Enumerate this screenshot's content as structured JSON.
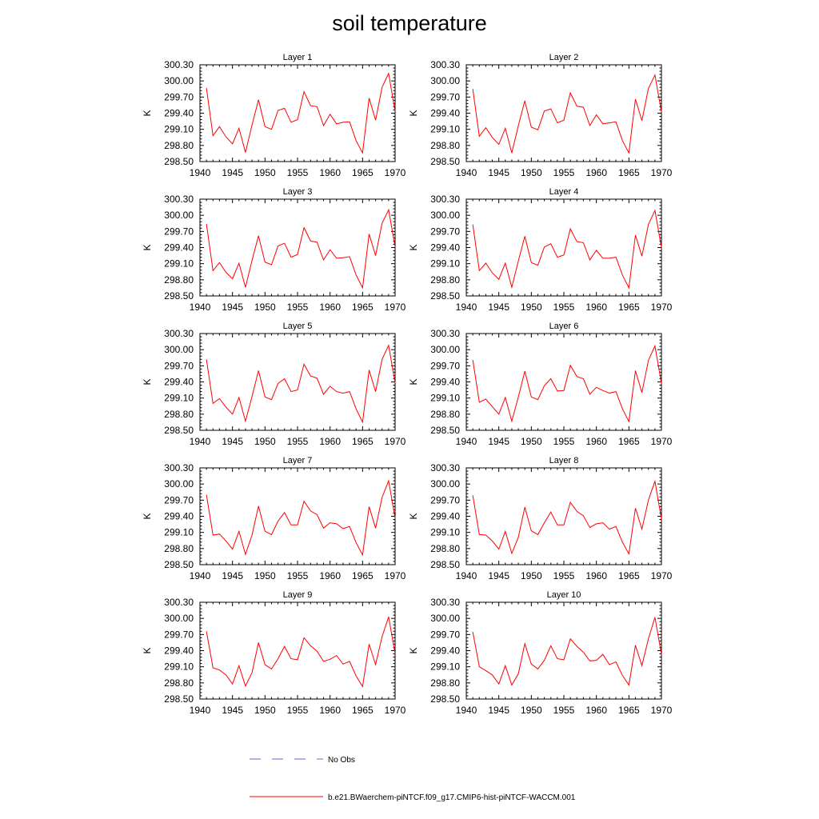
{
  "page": {
    "title": "soil temperature"
  },
  "legend": {
    "no_obs_label": "No Obs",
    "model_label": "b.e21.BWaerchem-piNTCF.f09_g17.CMIP6-hist-piNTCF-WACCM.001",
    "no_obs_color": "#6666cc",
    "model_color": "#ff0000"
  },
  "chart_data": {
    "type": "line",
    "title": "soil temperature",
    "ylabel": "K",
    "xlim": [
      1940,
      1970
    ],
    "ylim": [
      298.5,
      300.3
    ],
    "xticks": [
      "1940",
      "1945",
      "1950",
      "1955",
      "1960",
      "1965",
      "1970"
    ],
    "yticks": [
      "300.30",
      "300.00",
      "299.70",
      "299.40",
      "299.10",
      "298.80",
      "298.50"
    ],
    "line_color": "#ff0000",
    "x": [
      1941,
      1942,
      1943,
      1944,
      1945,
      1946,
      1947,
      1948,
      1949,
      1950,
      1951,
      1952,
      1953,
      1954,
      1955,
      1956,
      1957,
      1958,
      1959,
      1960,
      1961,
      1962,
      1963,
      1964,
      1965,
      1966,
      1967,
      1968,
      1969,
      1970
    ],
    "panels": [
      {
        "title": "Layer 1",
        "values": [
          299.87,
          298.98,
          299.15,
          298.96,
          298.83,
          299.12,
          298.67,
          299.18,
          299.65,
          299.15,
          299.1,
          299.45,
          299.49,
          299.23,
          299.28,
          299.8,
          299.54,
          299.52,
          299.17,
          299.38,
          299.2,
          299.23,
          299.24,
          298.89,
          298.66,
          299.68,
          299.27,
          299.88,
          300.14,
          299.43
        ]
      },
      {
        "title": "Layer 2",
        "values": [
          299.85,
          298.97,
          299.13,
          298.95,
          298.82,
          299.12,
          298.66,
          299.17,
          299.63,
          299.14,
          299.09,
          299.44,
          299.48,
          299.22,
          299.27,
          299.78,
          299.53,
          299.51,
          299.17,
          299.37,
          299.2,
          299.22,
          299.24,
          298.89,
          298.66,
          299.66,
          299.26,
          299.86,
          300.11,
          299.42
        ]
      },
      {
        "title": "Layer 3",
        "values": [
          299.84,
          298.97,
          299.12,
          298.94,
          298.82,
          299.11,
          298.66,
          299.16,
          299.62,
          299.13,
          299.08,
          299.43,
          299.48,
          299.22,
          299.27,
          299.77,
          299.52,
          299.5,
          299.17,
          299.36,
          299.2,
          299.21,
          299.23,
          298.89,
          298.65,
          299.65,
          299.25,
          299.85,
          300.1,
          299.41
        ]
      },
      {
        "title": "Layer 4",
        "values": [
          299.83,
          298.97,
          299.11,
          298.93,
          298.81,
          299.11,
          298.66,
          299.15,
          299.61,
          299.12,
          299.07,
          299.41,
          299.47,
          299.22,
          299.26,
          299.75,
          299.51,
          299.49,
          299.17,
          299.35,
          299.2,
          299.2,
          299.22,
          298.89,
          298.65,
          299.63,
          299.24,
          299.83,
          300.09,
          299.4
        ]
      },
      {
        "title": "Layer 5",
        "values": [
          299.82,
          299.0,
          299.09,
          298.93,
          298.8,
          299.11,
          298.67,
          299.13,
          299.61,
          299.12,
          299.07,
          299.37,
          299.46,
          299.22,
          299.25,
          299.73,
          299.51,
          299.47,
          299.17,
          299.32,
          299.22,
          299.19,
          299.22,
          298.9,
          298.65,
          299.62,
          299.22,
          299.82,
          300.08,
          299.38
        ]
      },
      {
        "title": "Layer 6",
        "values": [
          299.81,
          299.02,
          299.08,
          298.94,
          298.8,
          299.11,
          298.67,
          299.12,
          299.6,
          299.12,
          299.07,
          299.33,
          299.46,
          299.23,
          299.24,
          299.71,
          299.5,
          299.46,
          299.17,
          299.3,
          299.24,
          299.19,
          299.22,
          298.9,
          298.66,
          299.61,
          299.2,
          299.8,
          300.07,
          299.37
        ]
      },
      {
        "title": "Layer 7",
        "values": [
          299.8,
          299.05,
          299.07,
          298.94,
          298.79,
          299.12,
          298.69,
          299.05,
          299.59,
          299.12,
          299.06,
          299.31,
          299.47,
          299.24,
          299.24,
          299.68,
          299.5,
          299.43,
          299.18,
          299.28,
          299.26,
          299.17,
          299.21,
          298.91,
          298.68,
          299.58,
          299.18,
          299.75,
          300.06,
          299.36
        ]
      },
      {
        "title": "Layer 8",
        "values": [
          299.79,
          299.06,
          299.05,
          298.94,
          298.79,
          299.12,
          298.71,
          299.01,
          299.57,
          299.13,
          299.06,
          299.28,
          299.48,
          299.24,
          299.24,
          299.66,
          299.49,
          299.41,
          299.19,
          299.26,
          299.28,
          299.16,
          299.21,
          298.92,
          298.7,
          299.55,
          299.16,
          299.7,
          300.05,
          299.35
        ]
      },
      {
        "title": "Layer 9",
        "values": [
          299.76,
          299.08,
          299.04,
          298.95,
          298.78,
          299.12,
          298.74,
          298.99,
          299.55,
          299.14,
          299.06,
          299.25,
          299.48,
          299.25,
          299.23,
          299.64,
          299.49,
          299.39,
          299.2,
          299.24,
          299.31,
          299.15,
          299.2,
          298.93,
          298.73,
          299.52,
          299.14,
          299.66,
          300.03,
          299.34
        ]
      },
      {
        "title": "Layer 10",
        "values": [
          299.75,
          299.1,
          299.03,
          298.95,
          298.78,
          299.12,
          298.76,
          298.97,
          299.53,
          299.15,
          299.06,
          299.22,
          299.49,
          299.25,
          299.23,
          299.62,
          299.48,
          299.37,
          299.21,
          299.22,
          299.33,
          299.14,
          299.19,
          298.94,
          298.76,
          299.5,
          299.12,
          299.62,
          300.02,
          299.33
        ]
      }
    ]
  }
}
